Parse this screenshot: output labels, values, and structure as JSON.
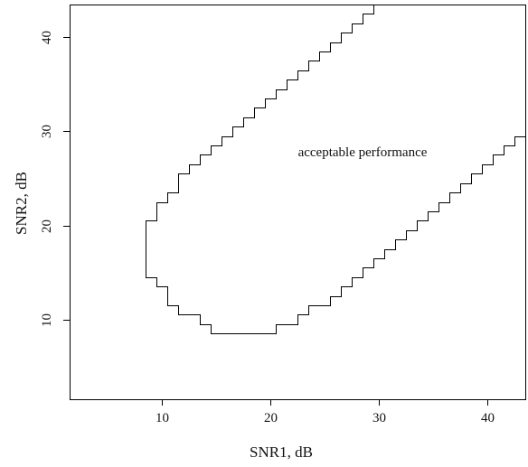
{
  "chart_data": {
    "type": "line",
    "xlabel": "SNR1, dB",
    "ylabel": "SNR2, dB",
    "xlim": [
      1.5,
      43.5
    ],
    "ylim": [
      1.5,
      43.5
    ],
    "x_ticks": [
      10,
      20,
      30,
      40
    ],
    "y_ticks": [
      10,
      20,
      30,
      40
    ],
    "grid": false,
    "annotation": "acceptable performance",
    "series": [
      {
        "x": [
          29.5,
          29.5,
          28.5,
          28.5,
          27.5,
          27.5,
          26.5,
          26.5,
          25.5,
          25.5,
          24.5,
          24.5,
          23.5,
          23.5,
          22.5,
          22.5,
          21.5,
          21.5,
          20.5,
          20.5,
          19.5,
          19.5,
          18.5,
          18.5,
          17.5,
          17.5,
          16.5,
          16.5,
          15.5,
          15.5,
          14.5,
          14.5,
          13.5,
          13.5,
          12.5,
          12.5,
          11.5,
          11.5,
          10.5,
          10.5,
          9.5,
          9.5,
          8.5,
          8.5,
          9.5,
          9.5,
          10.5,
          10.5,
          11.5,
          11.5,
          13.5,
          13.5,
          14.5,
          14.5,
          20.5,
          20.5,
          22.5,
          22.5,
          23.5,
          23.5,
          25.5,
          25.5,
          26.5,
          26.5,
          27.5,
          27.5,
          28.5,
          28.5,
          29.5,
          29.5,
          30.5,
          30.5,
          31.5,
          31.5,
          32.5,
          32.5,
          33.5,
          33.5,
          34.5,
          34.5,
          35.5,
          35.5,
          36.5,
          36.5,
          37.5,
          37.5,
          38.5,
          38.5,
          39.5,
          39.5,
          40.5,
          40.5,
          41.5,
          41.5,
          42.5,
          42.5,
          43.5,
          43.5,
          29.5
        ],
        "y": [
          43.5,
          42.5,
          42.5,
          41.5,
          41.5,
          40.5,
          40.5,
          39.5,
          39.5,
          38.5,
          38.5,
          37.5,
          37.5,
          36.5,
          36.5,
          35.5,
          35.5,
          34.5,
          34.5,
          33.5,
          33.5,
          32.5,
          32.5,
          31.5,
          31.5,
          30.5,
          30.5,
          29.5,
          29.5,
          28.5,
          28.5,
          27.5,
          27.5,
          26.5,
          26.5,
          25.5,
          25.5,
          23.5,
          23.5,
          22.5,
          22.5,
          20.5,
          20.5,
          14.5,
          14.5,
          13.5,
          13.5,
          11.5,
          11.5,
          10.5,
          10.5,
          9.5,
          9.5,
          8.5,
          8.5,
          9.5,
          9.5,
          10.5,
          10.5,
          11.5,
          11.5,
          12.5,
          12.5,
          13.5,
          13.5,
          14.5,
          14.5,
          15.5,
          15.5,
          16.5,
          16.5,
          17.5,
          17.5,
          18.5,
          18.5,
          19.5,
          19.5,
          20.5,
          20.5,
          21.5,
          21.5,
          22.5,
          22.5,
          23.5,
          23.5,
          24.5,
          24.5,
          25.5,
          25.5,
          26.5,
          26.5,
          27.5,
          27.5,
          28.5,
          28.5,
          29.5,
          29.5,
          43.5,
          43.5
        ]
      }
    ]
  }
}
